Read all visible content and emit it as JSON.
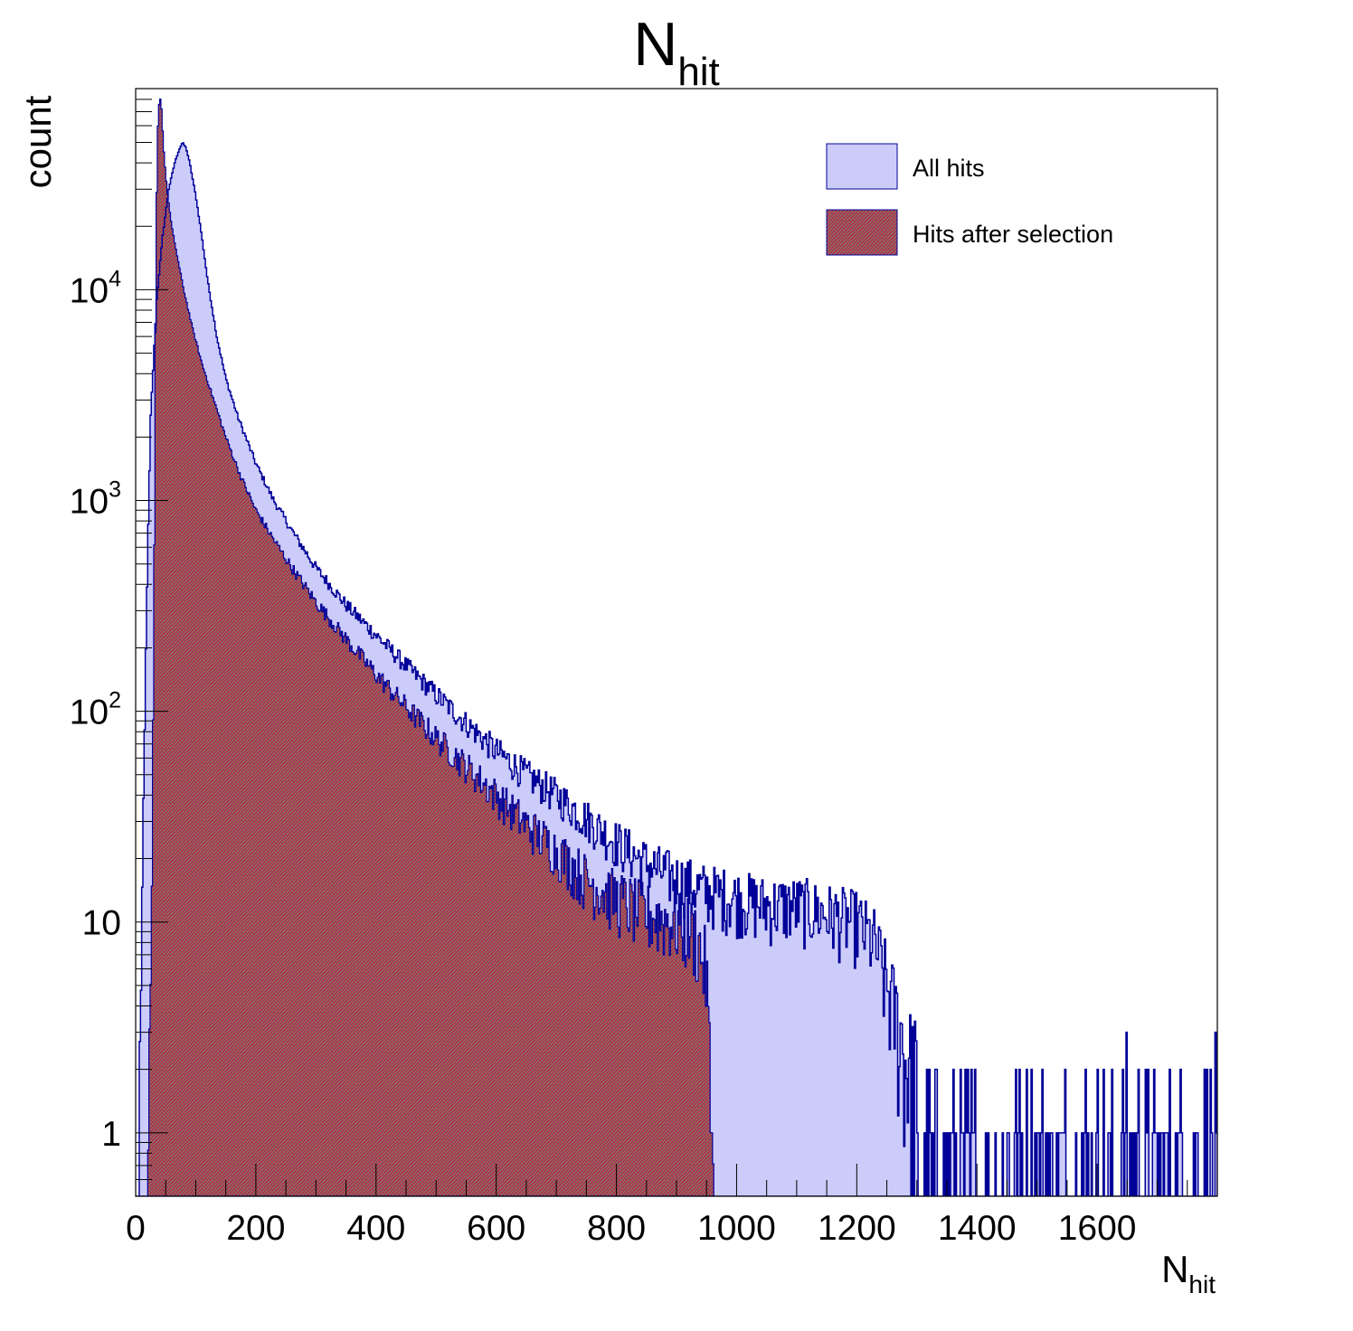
{
  "chart_data": {
    "type": "histogram",
    "title": {
      "main": "N",
      "sub": "hit"
    },
    "xlabel": {
      "main": "N",
      "sub": "hit"
    },
    "ylabel": "count",
    "x_range": [
      0,
      1800
    ],
    "y_range": [
      0.5,
      90000
    ],
    "y_scale": "log",
    "x_ticks": [
      {
        "value": 0,
        "label": "0"
      },
      {
        "value": 200,
        "label": "200"
      },
      {
        "value": 400,
        "label": "400"
      },
      {
        "value": 600,
        "label": "600"
      },
      {
        "value": 800,
        "label": "800"
      },
      {
        "value": 1000,
        "label": "1000"
      },
      {
        "value": 1200,
        "label": "1200"
      },
      {
        "value": 1400,
        "label": "1400"
      },
      {
        "value": 1600,
        "label": "1600"
      }
    ],
    "y_ticks": [
      {
        "value": 1,
        "base": "1",
        "exp": ""
      },
      {
        "value": 10,
        "base": "10",
        "exp": ""
      },
      {
        "value": 100,
        "base": "10",
        "exp": "2"
      },
      {
        "value": 1000,
        "base": "10",
        "exp": "3"
      },
      {
        "value": 10000,
        "base": "10",
        "exp": "4"
      }
    ],
    "colors": {
      "all_fill": "#ccccfa",
      "all_line": "#000099",
      "sel_fill": "#b02f5a",
      "sel_line": "#000099",
      "frame": "#000000"
    },
    "legend_position": "top-right",
    "series": [
      {
        "name": "All hits",
        "points": [
          [
            5,
            0.6
          ],
          [
            8,
            4
          ],
          [
            12,
            20
          ],
          [
            18,
            300
          ],
          [
            25,
            2500
          ],
          [
            35,
            9000
          ],
          [
            45,
            18000
          ],
          [
            55,
            30000
          ],
          [
            65,
            40000
          ],
          [
            72,
            46000
          ],
          [
            78,
            50000
          ],
          [
            84,
            47000
          ],
          [
            90,
            40000
          ],
          [
            100,
            28000
          ],
          [
            110,
            18000
          ],
          [
            120,
            11000
          ],
          [
            135,
            6000
          ],
          [
            150,
            3800
          ],
          [
            170,
            2500
          ],
          [
            200,
            1500
          ],
          [
            230,
            1000
          ],
          [
            260,
            720
          ],
          [
            300,
            480
          ],
          [
            350,
            320
          ],
          [
            400,
            230
          ],
          [
            450,
            165
          ],
          [
            500,
            120
          ],
          [
            550,
            88
          ],
          [
            600,
            65
          ],
          [
            650,
            50
          ],
          [
            700,
            40
          ],
          [
            750,
            31
          ],
          [
            800,
            24
          ],
          [
            850,
            19
          ],
          [
            900,
            16
          ],
          [
            950,
            14
          ],
          [
            1000,
            13
          ],
          [
            1050,
            12
          ],
          [
            1100,
            12
          ],
          [
            1150,
            11
          ],
          [
            1200,
            10
          ],
          [
            1230,
            8
          ],
          [
            1260,
            4
          ],
          [
            1290,
            2
          ],
          [
            1350,
            1
          ],
          [
            1450,
            1
          ],
          [
            1550,
            1
          ],
          [
            1650,
            1
          ],
          [
            1800,
            1
          ]
        ]
      },
      {
        "name": "Hits after selection",
        "points": [
          [
            20,
            0.6
          ],
          [
            25,
            3
          ],
          [
            28,
            30
          ],
          [
            31,
            600
          ],
          [
            34,
            20000
          ],
          [
            37,
            60000
          ],
          [
            40,
            85000
          ],
          [
            43,
            72000
          ],
          [
            47,
            45000
          ],
          [
            52,
            30000
          ],
          [
            60,
            20000
          ],
          [
            70,
            14000
          ],
          [
            80,
            10000
          ],
          [
            95,
            6500
          ],
          [
            110,
            4500
          ],
          [
            130,
            3000
          ],
          [
            150,
            2000
          ],
          [
            175,
            1300
          ],
          [
            200,
            900
          ],
          [
            230,
            650
          ],
          [
            260,
            480
          ],
          [
            300,
            330
          ],
          [
            350,
            220
          ],
          [
            400,
            150
          ],
          [
            450,
            105
          ],
          [
            500,
            75
          ],
          [
            550,
            55
          ],
          [
            600,
            40
          ],
          [
            650,
            29
          ],
          [
            700,
            22
          ],
          [
            750,
            16
          ],
          [
            800,
            13
          ],
          [
            850,
            11
          ],
          [
            900,
            10
          ],
          [
            930,
            9
          ],
          [
            950,
            6
          ],
          [
            955,
            2
          ],
          [
            962,
            0.6
          ]
        ]
      }
    ]
  }
}
